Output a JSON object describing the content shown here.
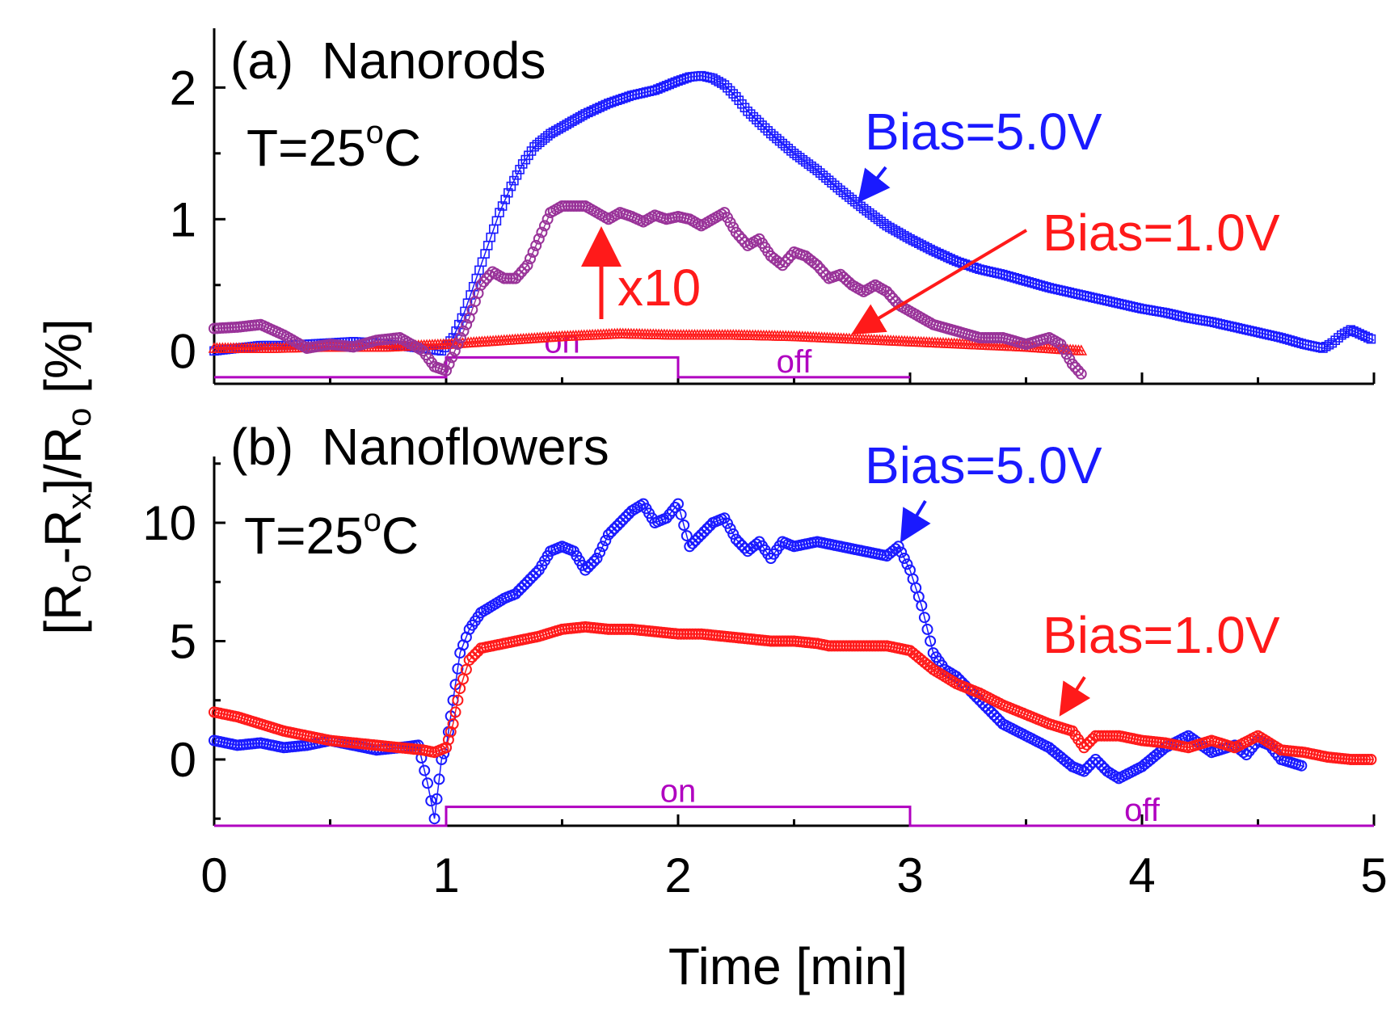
{
  "chart_data": [
    {
      "panel": "(a)",
      "type": "scatter",
      "title": "Nanorods",
      "temperature_label": "T=25°C",
      "xlim": [
        0,
        5
      ],
      "ylim": [
        -0.25,
        2.45
      ],
      "yticks": [
        0,
        1,
        2
      ],
      "series": [
        {
          "name": "Bias=5.0V",
          "color": "#1a1aff",
          "marker": "square",
          "x": [
            0.0,
            0.1,
            0.2,
            0.3,
            0.4,
            0.5,
            0.6,
            0.7,
            0.8,
            0.9,
            0.98,
            1.03,
            1.08,
            1.13,
            1.18,
            1.23,
            1.28,
            1.33,
            1.38,
            1.45,
            1.52,
            1.6,
            1.7,
            1.8,
            1.9,
            2.0,
            2.05,
            2.1,
            2.15,
            2.2,
            2.25,
            2.3,
            2.4,
            2.5,
            2.6,
            2.7,
            2.8,
            2.9,
            3.0,
            3.1,
            3.2,
            3.3,
            3.4,
            3.5,
            3.6,
            3.7,
            3.8,
            3.9,
            4.0,
            4.1,
            4.2,
            4.3,
            4.4,
            4.5,
            4.6,
            4.7,
            4.78,
            4.82,
            4.86,
            4.9,
            4.95,
            5.0
          ],
          "y": [
            0.0,
            0.02,
            0.04,
            0.04,
            0.05,
            0.06,
            0.07,
            0.06,
            0.04,
            0.02,
            0.0,
            0.1,
            0.3,
            0.55,
            0.8,
            1.05,
            1.25,
            1.42,
            1.55,
            1.65,
            1.72,
            1.8,
            1.88,
            1.94,
            1.98,
            2.05,
            2.08,
            2.09,
            2.07,
            2.02,
            1.93,
            1.82,
            1.65,
            1.5,
            1.37,
            1.22,
            1.08,
            0.95,
            0.85,
            0.76,
            0.68,
            0.62,
            0.58,
            0.53,
            0.48,
            0.44,
            0.4,
            0.36,
            0.32,
            0.29,
            0.25,
            0.22,
            0.18,
            0.14,
            0.1,
            0.05,
            0.02,
            0.06,
            0.12,
            0.16,
            0.12,
            0.08
          ]
        },
        {
          "name": "Bias=1.0V",
          "color": "#ff1a1a",
          "marker": "triangle",
          "x": [
            0.0,
            0.25,
            0.5,
            0.75,
            1.0,
            1.25,
            1.5,
            1.75,
            2.0,
            2.25,
            2.5,
            2.75,
            3.0,
            3.25,
            3.5,
            3.75
          ],
          "y": [
            0.02,
            0.02,
            0.03,
            0.03,
            0.05,
            0.08,
            0.11,
            0.13,
            0.12,
            0.12,
            0.11,
            0.09,
            0.07,
            0.05,
            0.03,
            0.0
          ]
        },
        {
          "name": "Bias=1.0V x10",
          "color": "#993399",
          "marker": "circle",
          "x": [
            0.0,
            0.1,
            0.2,
            0.3,
            0.4,
            0.5,
            0.6,
            0.7,
            0.8,
            0.9,
            0.95,
            1.0,
            1.05,
            1.1,
            1.15,
            1.2,
            1.25,
            1.3,
            1.35,
            1.4,
            1.45,
            1.5,
            1.55,
            1.6,
            1.65,
            1.7,
            1.75,
            1.8,
            1.85,
            1.9,
            1.95,
            2.0,
            2.05,
            2.1,
            2.15,
            2.2,
            2.25,
            2.3,
            2.35,
            2.4,
            2.45,
            2.5,
            2.55,
            2.6,
            2.65,
            2.7,
            2.75,
            2.8,
            2.85,
            2.9,
            2.95,
            3.0,
            3.1,
            3.2,
            3.3,
            3.4,
            3.5,
            3.6,
            3.65,
            3.7,
            3.75
          ],
          "y": [
            0.17,
            0.18,
            0.2,
            0.12,
            0.02,
            0.05,
            0.03,
            0.08,
            0.1,
            0.0,
            -0.12,
            -0.15,
            0.05,
            0.25,
            0.5,
            0.6,
            0.55,
            0.55,
            0.65,
            0.85,
            1.05,
            1.1,
            1.1,
            1.1,
            1.05,
            1.0,
            1.05,
            1.02,
            0.98,
            1.03,
            1.0,
            1.02,
            1.0,
            0.95,
            1.0,
            1.05,
            0.9,
            0.8,
            0.85,
            0.72,
            0.65,
            0.75,
            0.72,
            0.65,
            0.55,
            0.58,
            0.5,
            0.45,
            0.5,
            0.45,
            0.35,
            0.3,
            0.2,
            0.15,
            0.1,
            0.1,
            0.05,
            0.1,
            0.05,
            -0.1,
            -0.2
          ]
        }
      ],
      "on_off": {
        "color": "#b000c0",
        "x": [
          0,
          1,
          1,
          2,
          2,
          3
        ],
        "y_low": -0.2,
        "y_high": -0.05,
        "on_label": "on",
        "off_label": "off"
      },
      "annotations": {
        "bias5": "Bias=5.0V",
        "bias1": "Bias=1.0V",
        "x10": "x10"
      }
    },
    {
      "panel": "(b)",
      "type": "scatter",
      "title": "Nanoflowers",
      "temperature_label": "T=25°C",
      "xlim": [
        0,
        5
      ],
      "ylim": [
        -2.8,
        12.8
      ],
      "yticks": [
        0,
        5,
        10
      ],
      "series": [
        {
          "name": "Bias=5.0V",
          "color": "#1a1aff",
          "marker": "circle",
          "x": [
            0.0,
            0.1,
            0.2,
            0.3,
            0.4,
            0.5,
            0.6,
            0.7,
            0.8,
            0.88,
            0.92,
            0.95,
            0.98,
            1.0,
            1.03,
            1.06,
            1.1,
            1.15,
            1.2,
            1.25,
            1.3,
            1.35,
            1.4,
            1.45,
            1.5,
            1.55,
            1.6,
            1.65,
            1.7,
            1.75,
            1.8,
            1.85,
            1.9,
            1.95,
            2.0,
            2.05,
            2.1,
            2.15,
            2.2,
            2.25,
            2.3,
            2.35,
            2.4,
            2.45,
            2.5,
            2.6,
            2.7,
            2.8,
            2.9,
            2.95,
            3.0,
            3.05,
            3.1,
            3.15,
            3.2,
            3.25,
            3.3,
            3.35,
            3.4,
            3.5,
            3.6,
            3.7,
            3.75,
            3.8,
            3.85,
            3.9,
            4.0,
            4.1,
            4.2,
            4.3,
            4.4,
            4.45,
            4.5,
            4.55,
            4.6,
            4.7
          ],
          "y": [
            0.8,
            0.6,
            0.7,
            0.5,
            0.6,
            0.8,
            0.6,
            0.4,
            0.5,
            0.6,
            -1.0,
            -2.5,
            0.0,
            0.5,
            2.5,
            4.5,
            5.5,
            6.2,
            6.5,
            6.8,
            7.0,
            7.5,
            8.0,
            8.8,
            9.0,
            8.8,
            8.0,
            8.5,
            9.5,
            10.0,
            10.5,
            10.8,
            10.0,
            10.2,
            10.8,
            9.0,
            9.5,
            10.0,
            10.2,
            9.3,
            8.8,
            9.2,
            8.5,
            9.2,
            9.0,
            9.2,
            9.0,
            8.8,
            8.6,
            9.0,
            8.0,
            6.5,
            4.5,
            3.8,
            3.5,
            3.0,
            2.5,
            2.0,
            1.5,
            1.0,
            0.5,
            -0.3,
            -0.5,
            0.0,
            -0.5,
            -0.8,
            -0.3,
            0.5,
            1.0,
            0.3,
            0.6,
            0.2,
            0.8,
            0.6,
            0.0,
            -0.3
          ]
        },
        {
          "name": "Bias=1.0V",
          "color": "#ff1a1a",
          "marker": "circle",
          "x": [
            0.0,
            0.1,
            0.2,
            0.3,
            0.4,
            0.5,
            0.6,
            0.7,
            0.8,
            0.9,
            0.95,
            1.0,
            1.03,
            1.06,
            1.1,
            1.15,
            1.2,
            1.25,
            1.3,
            1.4,
            1.5,
            1.6,
            1.7,
            1.8,
            1.9,
            2.0,
            2.1,
            2.2,
            2.3,
            2.4,
            2.5,
            2.6,
            2.65,
            2.7,
            2.8,
            2.9,
            3.0,
            3.05,
            3.1,
            3.2,
            3.3,
            3.4,
            3.5,
            3.6,
            3.7,
            3.75,
            3.8,
            3.9,
            4.0,
            4.1,
            4.2,
            4.3,
            4.4,
            4.5,
            4.6,
            4.7,
            4.8,
            4.9,
            5.0
          ],
          "y": [
            2.0,
            1.8,
            1.5,
            1.2,
            1.0,
            0.8,
            0.7,
            0.6,
            0.5,
            0.4,
            0.3,
            0.5,
            1.5,
            3.0,
            4.2,
            4.7,
            4.8,
            4.9,
            5.0,
            5.2,
            5.5,
            5.6,
            5.5,
            5.5,
            5.4,
            5.3,
            5.3,
            5.2,
            5.1,
            5.0,
            5.0,
            4.9,
            4.8,
            4.8,
            4.8,
            4.8,
            4.6,
            4.2,
            3.8,
            3.2,
            2.8,
            2.3,
            1.9,
            1.5,
            1.2,
            0.5,
            1.0,
            1.0,
            0.8,
            0.7,
            0.5,
            0.8,
            0.5,
            1.0,
            0.4,
            0.3,
            0.1,
            0.0,
            0.0
          ]
        }
      ],
      "on_off": {
        "color": "#b000c0",
        "x": [
          0,
          1,
          1,
          3,
          3,
          5
        ],
        "y_low": -2.8,
        "y_high": -2.0,
        "on_label": "on",
        "off_label": "off"
      },
      "annotations": {
        "bias5": "Bias=5.0V",
        "bias1": "Bias=1.0V"
      }
    }
  ],
  "xaxis": {
    "label": "Time [min]",
    "ticks": [
      0,
      1,
      2,
      3,
      4,
      5
    ]
  },
  "yaxis_label": "[R_o-R_x]/R_o [%]",
  "ylabel_parts": {
    "p1": "[R",
    "s1": "o",
    "p2": "-R",
    "s2": "x",
    "p3": "]/R",
    "s3": "o",
    "p4": " [%]"
  }
}
